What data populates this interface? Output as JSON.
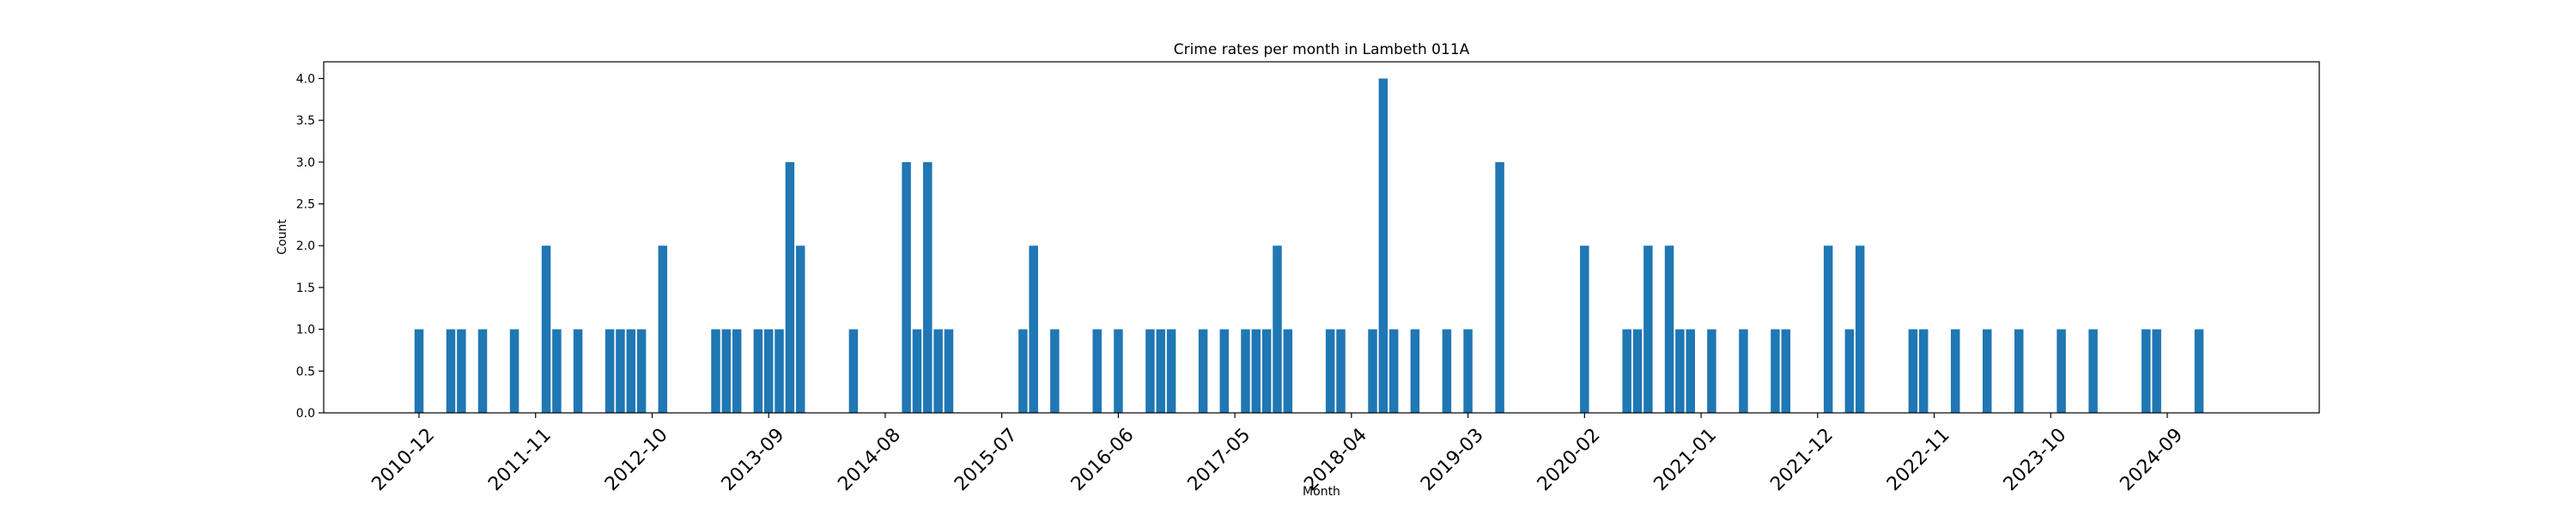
{
  "chart_data": {
    "type": "bar",
    "title": "Crime rates per month in Lambeth 011A",
    "xlabel": "Month",
    "ylabel": "Count",
    "ylim": [
      0,
      4.2
    ],
    "yticks": [
      "0.0",
      "0.5",
      "1.0",
      "1.5",
      "2.0",
      "2.5",
      "3.0",
      "3.5",
      "4.0"
    ],
    "xticks": [
      "2010-12",
      "2011-11",
      "2012-10",
      "2013-09",
      "2014-08",
      "2015-07",
      "2016-06",
      "2017-05",
      "2018-04",
      "2019-03",
      "2020-02",
      "2021-01",
      "2021-12",
      "2022-11",
      "2023-10",
      "2024-09"
    ],
    "grid": false,
    "bar_color": "#1f77b4",
    "categories": [
      "2010-12",
      "2011-03",
      "2011-04",
      "2011-06",
      "2011-09",
      "2011-12",
      "2012-01",
      "2012-03",
      "2012-06",
      "2012-07",
      "2012-08",
      "2012-09",
      "2012-11",
      "2013-04",
      "2013-05",
      "2013-06",
      "2013-08",
      "2013-09",
      "2013-10",
      "2013-11",
      "2013-12",
      "2014-05",
      "2014-10",
      "2014-11",
      "2014-12",
      "2015-01",
      "2015-02",
      "2015-09",
      "2015-10",
      "2015-12",
      "2016-04",
      "2016-06",
      "2016-09",
      "2016-10",
      "2016-11",
      "2017-02",
      "2017-04",
      "2017-06",
      "2017-07",
      "2017-08",
      "2017-09",
      "2017-10",
      "2018-02",
      "2018-03",
      "2018-06",
      "2018-07",
      "2018-08",
      "2018-10",
      "2019-01",
      "2019-03",
      "2019-06",
      "2020-02",
      "2020-06",
      "2020-07",
      "2020-08",
      "2020-10",
      "2020-11",
      "2020-12",
      "2021-02",
      "2021-05",
      "2021-08",
      "2021-09",
      "2022-01",
      "2022-03",
      "2022-04",
      "2022-09",
      "2022-10",
      "2023-01",
      "2023-04",
      "2023-07",
      "2023-11",
      "2024-02",
      "2024-07",
      "2024-08",
      "2024-12"
    ],
    "values": [
      1,
      1,
      1,
      1,
      1,
      2,
      1,
      1,
      1,
      1,
      1,
      1,
      2,
      1,
      1,
      1,
      1,
      1,
      1,
      3,
      2,
      1,
      3,
      1,
      3,
      1,
      1,
      1,
      2,
      1,
      1,
      1,
      1,
      1,
      1,
      1,
      1,
      1,
      1,
      1,
      2,
      1,
      1,
      1,
      1,
      4,
      1,
      1,
      1,
      1,
      3,
      2,
      1,
      1,
      2,
      2,
      1,
      1,
      1,
      1,
      1,
      1,
      2,
      1,
      2,
      1,
      1,
      1,
      1,
      1,
      1,
      1,
      1,
      1,
      1
    ]
  }
}
